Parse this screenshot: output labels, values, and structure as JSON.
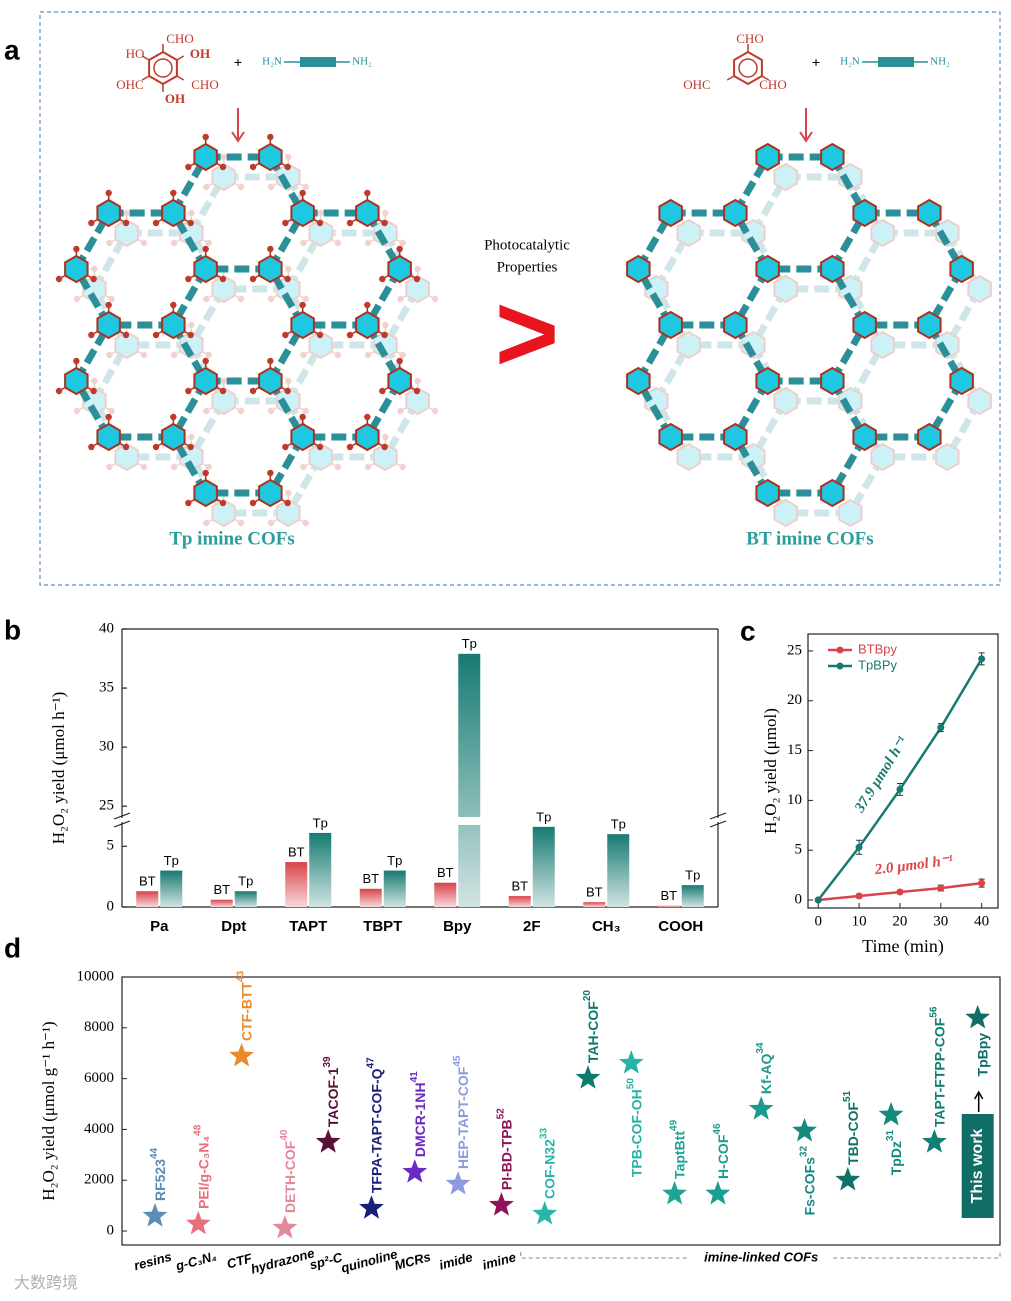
{
  "panel_labels": [
    "a",
    "b",
    "c",
    "d"
  ],
  "scheme": {
    "left": {
      "substituents": [
        "CHO",
        "HO",
        "OH",
        "OHC",
        "CHO",
        "OH"
      ],
      "plus": "+",
      "amine": [
        "H₂N",
        "NH₂"
      ],
      "label": "Tp imine COFs"
    },
    "middle": {
      "text": [
        "Photocatalytic",
        "Properties"
      ],
      "symbol": ">"
    },
    "right": {
      "substituents": [
        "CHO",
        "OHC",
        "CHO"
      ],
      "plus": "+",
      "amine": [
        "H₂N",
        "NH₂"
      ],
      "label": "BT imine COFs"
    }
  },
  "chart_data": [
    {
      "type": "bar",
      "ylabel": "H₂O₂ yield (μmol h⁻¹)",
      "categories": [
        "Pa",
        "Dpt",
        "TAPT",
        "TBPT",
        "Bpy",
        "2F",
        "CH₃",
        "COOH"
      ],
      "series": [
        {
          "name": "BT",
          "color": "#d9434a",
          "values": [
            1.3,
            0.6,
            3.7,
            1.5,
            2.0,
            0.9,
            0.4,
            0.1
          ]
        },
        {
          "name": "Tp",
          "color": "#177a72",
          "values": [
            3.0,
            1.3,
            6.1,
            3.0,
            37.9,
            6.6,
            6.0,
            1.8
          ]
        }
      ],
      "ylim": [
        0,
        40
      ],
      "ybreak": [
        7,
        24
      ],
      "yticks": [
        0,
        5,
        25,
        30,
        35,
        40
      ]
    },
    {
      "type": "line",
      "xlabel": "Time (min)",
      "ylabel": "H₂O₂ yield (μmol)",
      "x": [
        0,
        10,
        20,
        30,
        40
      ],
      "series": [
        {
          "name": "BTBpy",
          "color": "#d9434a",
          "values": [
            0,
            0.4,
            0.8,
            1.2,
            1.7
          ],
          "errors": [
            0,
            0.2,
            0.2,
            0.3,
            0.4
          ]
        },
        {
          "name": "TpBPy",
          "color": "#177a72",
          "values": [
            0,
            5.3,
            11.1,
            17.3,
            24.2
          ],
          "errors": [
            0,
            0.7,
            0.6,
            0.4,
            0.6
          ]
        }
      ],
      "xlim": [
        -2.5,
        44
      ],
      "ylim": [
        -0.8,
        26.7
      ],
      "xticks": [
        0,
        10,
        20,
        30,
        40
      ],
      "yticks": [
        0,
        5,
        10,
        15,
        20,
        25
      ],
      "annotations": [
        "37.9 μmol h⁻¹",
        "2.0 μmol h⁻¹"
      ],
      "legend": "upper left"
    },
    {
      "type": "scatter",
      "marker": "star",
      "ylabel": "H₂O₂ yield (μmol g⁻¹ h⁻¹)",
      "ylim": [
        -550,
        10000
      ],
      "yticks": [
        0,
        2000,
        4000,
        6000,
        8000,
        10000
      ],
      "groups": [
        {
          "name": "resins",
          "points": [
            {
              "label": "RF523",
              "ref": "44",
              "color": "#5b8db8",
              "value": 590
            }
          ]
        },
        {
          "name": "g-C₃N₄",
          "points": [
            {
              "label": "PEI/g-C₃N₄",
              "ref": "48",
              "color": "#e8707a",
              "value": 280
            }
          ]
        },
        {
          "name": "CTF",
          "points": [
            {
              "label": "CTF-BTT",
              "ref": "43",
              "color": "#e8892d",
              "value": 6890
            }
          ]
        },
        {
          "name": "hydrazone",
          "points": [
            {
              "label": "DETH-COF",
              "ref": "40",
              "color": "#e08a9a",
              "value": 120
            }
          ]
        },
        {
          "name": "sp²-C",
          "points": [
            {
              "label": "TACOF-1",
              "ref": "39",
              "color": "#5c1038",
              "value": 3500
            }
          ]
        },
        {
          "name": "quinoline",
          "points": [
            {
              "label": "TFPA-TAPT-COF-Q",
              "ref": "47",
              "color": "#1a1f7a",
              "value": 900
            }
          ]
        },
        {
          "name": "MCRs",
          "points": [
            {
              "label": "DMCR-1NH",
              "ref": "41",
              "color": "#6a2bc0",
              "value": 2320
            }
          ]
        },
        {
          "name": "imide",
          "points": [
            {
              "label": "HEP-TAPT-COF",
              "ref": "45",
              "color": "#8e9ae0",
              "value": 1850
            }
          ]
        },
        {
          "name": "imine",
          "points": [
            {
              "label": "PI-BD-TPB",
              "ref": "52",
              "color": "#8b1457",
              "value": 1020
            }
          ]
        },
        {
          "name": "imine-linked COFs",
          "points": [
            {
              "label": "COF-N32",
              "ref": "33",
              "color": "#2ab5a8",
              "value": 670
            },
            {
              "label": "TAH-COF",
              "ref": "20",
              "color": "#0e7a6e",
              "value": 6020
            },
            {
              "label": "TPB-COF-OH",
              "ref": "50",
              "color": "#27b3a6",
              "value": 6610
            },
            {
              "label": "TaptBtt",
              "ref": "49",
              "color": "#1fa598",
              "value": 1460
            },
            {
              "label": "H-COF",
              "ref": "46",
              "color": "#1a9e92",
              "value": 1460
            },
            {
              "label": "Kf-AQ",
              "ref": "34",
              "color": "#1d9a8f",
              "value": 4800
            },
            {
              "label": "Fs-COFs",
              "ref": "32",
              "color": "#168a80",
              "value": 3940
            },
            {
              "label": "TBD-COF",
              "ref": "51",
              "color": "#0f7268",
              "value": 2010
            },
            {
              "label": "TpDz",
              "ref": "31",
              "color": "#15897e",
              "value": 4570
            },
            {
              "label": "TAPT-FTPP-COF",
              "ref": "56",
              "color": "#137f74",
              "value": 3500
            },
            {
              "label": "TpBpy",
              "color": "#116e66",
              "value": 8390
            }
          ]
        }
      ],
      "annotation": "This work"
    }
  ],
  "watermark": "大数跨境"
}
